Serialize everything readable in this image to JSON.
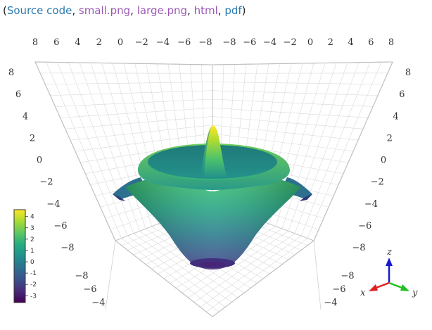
{
  "links": {
    "open": "(",
    "source_code": "Source code",
    "small_png": "small.png",
    "large_png": "large.png",
    "html": "html",
    "pdf": "pdf",
    "sep": ", ",
    "close": ")"
  },
  "colors": {
    "link_blue": "#2a7ab0",
    "link_purple": "#9b59b6",
    "grid": "#d9d9d9",
    "x_axis": "#e02020",
    "y_axis": "#20c020",
    "z_axis": "#1a1acc"
  },
  "chart_data": {
    "type": "surface",
    "colormap": "viridis",
    "surface": "radial sinc-like: central peak, ring, outer ripple",
    "top_tick_labels": [
      "8",
      "6",
      "4",
      "2",
      "0",
      "−2",
      "−4",
      "−6",
      "−8",
      "−8",
      "−6",
      "−4",
      "−2",
      "0",
      "2",
      "4",
      "6",
      "8"
    ],
    "left_tick_labels": [
      "8",
      "6",
      "4",
      "2",
      "0",
      "−2",
      "−4",
      "−6",
      "−8"
    ],
    "right_tick_labels": [
      "8",
      "6",
      "4",
      "2",
      "0",
      "−2",
      "−4",
      "−6",
      "−8"
    ],
    "bottom_left_tick_labels": [
      "−8",
      "−6",
      "−4"
    ],
    "bottom_right_tick_labels": [
      "−8",
      "−6",
      "−4"
    ],
    "colorbar": {
      "ticks": [
        "4",
        "3",
        "2",
        "1",
        "0",
        "-1",
        "-2",
        "-3"
      ],
      "range": [
        -3.6,
        4.6
      ]
    },
    "axes_triad": {
      "x": "x",
      "y": "y",
      "z": "z"
    },
    "grid": true
  }
}
